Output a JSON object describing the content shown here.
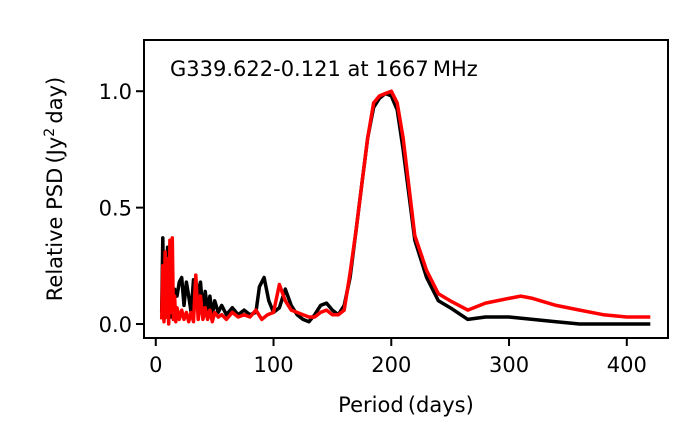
{
  "chart_data": {
    "type": "line",
    "title": "G339.622-0.121 at 1667 MHz",
    "xlabel": "Period (days)",
    "ylabel_main": "Relative PSD (Jy",
    "ylabel_sup": "2",
    "ylabel_end": " day)",
    "xlim": [
      -10,
      435
    ],
    "ylim": [
      -0.06,
      1.22
    ],
    "x_ticks": [
      0,
      100,
      200,
      300,
      400
    ],
    "x_tick_labels": [
      "0",
      "100",
      "200",
      "300",
      "400"
    ],
    "y_ticks": [
      0.0,
      0.5,
      1.0
    ],
    "y_tick_labels": [
      "0.0",
      "0.5",
      "1.0"
    ],
    "grid": false,
    "series": [
      {
        "color": "#000000",
        "x": [
          5,
          6,
          7,
          8,
          9,
          10,
          11,
          12,
          13,
          14,
          15,
          16,
          18,
          20,
          22,
          24,
          26,
          28,
          30,
          32,
          34,
          36,
          38,
          40,
          42,
          44,
          46,
          48,
          50,
          53,
          56,
          60,
          65,
          70,
          75,
          80,
          85,
          88,
          92,
          96,
          100,
          105,
          110,
          115,
          120,
          125,
          130,
          135,
          140,
          145,
          150,
          155,
          160,
          165,
          170,
          175,
          180,
          185,
          190,
          195,
          200,
          205,
          210,
          220,
          230,
          240,
          250,
          265,
          280,
          300,
          320,
          340,
          360,
          380,
          400,
          420
        ],
        "y": [
          0.05,
          0.37,
          0.02,
          0.3,
          0.03,
          0.33,
          0.01,
          0.25,
          0.03,
          0.2,
          0.02,
          0.15,
          0.12,
          0.18,
          0.2,
          0.08,
          0.18,
          0.12,
          0.05,
          0.19,
          0.08,
          0.14,
          0.18,
          0.05,
          0.14,
          0.06,
          0.12,
          0.04,
          0.1,
          0.05,
          0.08,
          0.04,
          0.07,
          0.04,
          0.06,
          0.04,
          0.05,
          0.16,
          0.2,
          0.1,
          0.05,
          0.07,
          0.15,
          0.08,
          0.04,
          0.02,
          0.01,
          0.04,
          0.08,
          0.09,
          0.06,
          0.04,
          0.08,
          0.2,
          0.4,
          0.6,
          0.8,
          0.93,
          0.97,
          0.99,
          0.98,
          0.92,
          0.75,
          0.36,
          0.2,
          0.1,
          0.07,
          0.02,
          0.03,
          0.03,
          0.02,
          0.01,
          0.0,
          0.0,
          0.0,
          0.0
        ]
      },
      {
        "color": "#ff0000",
        "x": [
          5,
          6,
          7,
          8,
          9,
          10,
          11,
          12,
          13,
          14,
          15,
          16,
          17,
          18,
          20,
          22,
          24,
          26,
          28,
          30,
          32,
          34,
          36,
          38,
          40,
          42,
          44,
          46,
          48,
          50,
          53,
          56,
          60,
          65,
          70,
          75,
          80,
          85,
          90,
          95,
          100,
          105,
          110,
          115,
          120,
          125,
          130,
          135,
          140,
          145,
          150,
          155,
          160,
          165,
          170,
          175,
          180,
          185,
          190,
          195,
          200,
          205,
          210,
          220,
          230,
          240,
          250,
          265,
          280,
          300,
          310,
          320,
          340,
          360,
          380,
          400,
          420
        ],
        "y": [
          0.02,
          0.25,
          0.01,
          0.31,
          0.03,
          0.28,
          0.0,
          0.36,
          0.05,
          0.37,
          0.02,
          0.12,
          0.01,
          0.07,
          0.02,
          0.06,
          0.02,
          0.05,
          0.01,
          0.05,
          0.01,
          0.21,
          0.02,
          0.12,
          0.02,
          0.07,
          0.02,
          0.06,
          0.01,
          0.05,
          0.03,
          0.04,
          0.02,
          0.05,
          0.03,
          0.04,
          0.03,
          0.06,
          0.02,
          0.04,
          0.05,
          0.17,
          0.1,
          0.06,
          0.05,
          0.04,
          0.03,
          0.03,
          0.05,
          0.06,
          0.04,
          0.04,
          0.06,
          0.22,
          0.4,
          0.6,
          0.8,
          0.95,
          0.98,
          0.99,
          1.0,
          0.95,
          0.8,
          0.38,
          0.23,
          0.13,
          0.1,
          0.06,
          0.09,
          0.11,
          0.12,
          0.11,
          0.08,
          0.06,
          0.04,
          0.03,
          0.03
        ]
      }
    ]
  }
}
